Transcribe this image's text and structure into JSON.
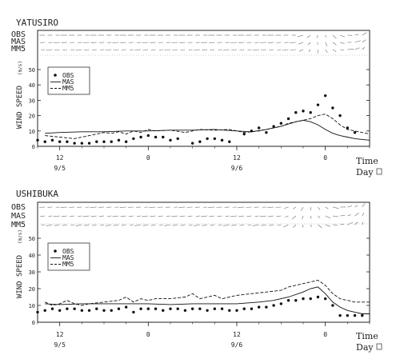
{
  "chart_data": [
    {
      "type": "line",
      "title": "YATUSIRO",
      "ylabel": "WIND SPEED",
      "ylabel_unit": "(m/s)",
      "ylim": [
        0,
        50
      ],
      "yticks": [
        0,
        10,
        20,
        30,
        40,
        50
      ],
      "xlabel": "Time",
      "xlabel2": "Day",
      "xlim": [
        9,
        54
      ],
      "xticks": [
        {
          "x": 12,
          "label": "12"
        },
        {
          "x": 24,
          "label": "0"
        },
        {
          "x": 36,
          "label": "12"
        },
        {
          "x": 48,
          "label": "0"
        }
      ],
      "day_labels": [
        {
          "x": 12,
          "label": "9/5"
        },
        {
          "x": 36,
          "label": "9/6"
        }
      ],
      "vector_rows": [
        "OBS",
        "MAS",
        "MM5"
      ],
      "legend": {
        "position": "upper-left",
        "entries": [
          "OBS",
          "MAS",
          "MM5"
        ]
      },
      "series": [
        {
          "name": "OBS",
          "style": "points",
          "x": [
            9,
            10,
            11,
            12,
            13,
            14,
            15,
            16,
            17,
            18,
            19,
            20,
            21,
            22,
            23,
            24,
            25,
            26,
            27,
            28,
            30,
            31,
            32,
            33,
            34,
            35,
            37,
            38,
            39,
            40,
            41,
            42,
            43,
            44,
            45,
            46,
            47,
            48,
            49,
            50,
            51,
            52
          ],
          "y": [
            4,
            3,
            4,
            3,
            3,
            2,
            2,
            2,
            3,
            3,
            3,
            4,
            3,
            5,
            6,
            7,
            6,
            6,
            4,
            5,
            2,
            3,
            5,
            5,
            4,
            3,
            8,
            10,
            12,
            9,
            13,
            15,
            18,
            22,
            23,
            22,
            27,
            33,
            25,
            20,
            12,
            9
          ]
        },
        {
          "name": "MAS",
          "style": "solid",
          "x": [
            10,
            12,
            15,
            18,
            21,
            24,
            27,
            30,
            33,
            36,
            38,
            40,
            42,
            44,
            45,
            46,
            47,
            48,
            49,
            50,
            51,
            52,
            53,
            54
          ],
          "y": [
            8.5,
            9,
            9.5,
            9.5,
            10,
            10,
            10.5,
            10.5,
            11,
            10,
            9.5,
            11,
            13,
            16,
            17,
            16,
            14,
            11,
            8.5,
            7,
            6,
            5,
            4.5,
            4
          ]
        },
        {
          "name": "MM5",
          "style": "dashed",
          "x": [
            10,
            12,
            14,
            16,
            18,
            19,
            20,
            21,
            22,
            23,
            24,
            25,
            27,
            29,
            31,
            33,
            35,
            37,
            39,
            40,
            42,
            43,
            44,
            45,
            46,
            47,
            48,
            49,
            50,
            51,
            52,
            53,
            54
          ],
          "y": [
            7,
            6,
            5,
            7,
            9,
            8.5,
            9.5,
            8,
            10,
            9,
            11,
            10,
            10.5,
            9,
            11,
            10.5,
            11,
            9,
            10,
            11,
            13,
            15,
            16,
            17,
            18,
            20,
            21,
            18,
            14,
            11,
            10,
            9,
            8
          ]
        }
      ]
    },
    {
      "type": "line",
      "title": "USHIBUKA",
      "ylabel": "WIND SPEED",
      "ylabel_unit": "(m/s)",
      "ylim": [
        0,
        50
      ],
      "yticks": [
        0,
        10,
        20,
        30,
        40,
        50
      ],
      "xlabel": "Time",
      "xlabel2": "Day",
      "xlim": [
        9,
        54
      ],
      "xticks": [
        {
          "x": 12,
          "label": "12"
        },
        {
          "x": 24,
          "label": "0"
        },
        {
          "x": 36,
          "label": "12"
        },
        {
          "x": 48,
          "label": "0"
        }
      ],
      "day_labels": [
        {
          "x": 12,
          "label": "9/5"
        },
        {
          "x": 36,
          "label": "9/6"
        }
      ],
      "vector_rows": [
        "OBS",
        "MAS",
        "MM5"
      ],
      "legend": {
        "position": "upper-left",
        "entries": [
          "OBS",
          "MAS",
          "MM5"
        ]
      },
      "series": [
        {
          "name": "OBS",
          "style": "points",
          "x": [
            9,
            10,
            11,
            12,
            13,
            14,
            15,
            16,
            17,
            18,
            19,
            20,
            21,
            22,
            23,
            24,
            25,
            26,
            27,
            28,
            29,
            30,
            31,
            32,
            33,
            34,
            35,
            36,
            37,
            38,
            39,
            40,
            41,
            42,
            43,
            44,
            45,
            46,
            47,
            48,
            49,
            50,
            51,
            52,
            53
          ],
          "y": [
            6,
            7,
            8,
            7,
            8,
            8,
            7,
            7,
            8,
            7,
            7,
            8,
            9,
            6,
            8,
            8,
            8,
            7,
            8,
            8,
            7,
            8,
            8,
            7,
            8,
            8,
            7,
            7,
            8,
            8,
            9,
            9,
            10,
            11,
            13,
            13,
            14,
            14,
            15,
            14,
            10,
            4,
            4,
            4,
            4
          ]
        },
        {
          "name": "MAS",
          "style": "solid",
          "x": [
            10,
            12,
            15,
            18,
            21,
            24,
            27,
            30,
            33,
            36,
            39,
            41,
            43,
            45,
            46,
            47,
            48,
            49,
            50,
            51,
            52,
            53,
            54
          ],
          "y": [
            11,
            10.5,
            11,
            11,
            11,
            11,
            10.5,
            11,
            11,
            11,
            12,
            13,
            15,
            18,
            20,
            21,
            17,
            12,
            9,
            7,
            6,
            5,
            5
          ]
        },
        {
          "name": "MM5",
          "style": "dashed",
          "x": [
            10,
            11,
            12,
            13,
            14,
            15,
            16,
            18,
            20,
            21,
            22,
            23,
            24,
            25,
            27,
            29,
            30,
            31,
            32,
            33,
            34,
            35,
            36,
            38,
            40,
            42,
            43,
            44,
            45,
            46,
            47,
            48,
            49,
            50,
            51,
            52,
            53,
            54
          ],
          "y": [
            12,
            10,
            11,
            13,
            11,
            10,
            11,
            12,
            13,
            15,
            12,
            14,
            13,
            14,
            14,
            15,
            17,
            14,
            15,
            16,
            14,
            15,
            16,
            17,
            18,
            19,
            21,
            22,
            23,
            24,
            25,
            22,
            17,
            14,
            13,
            12,
            12,
            12
          ]
        }
      ]
    }
  ]
}
